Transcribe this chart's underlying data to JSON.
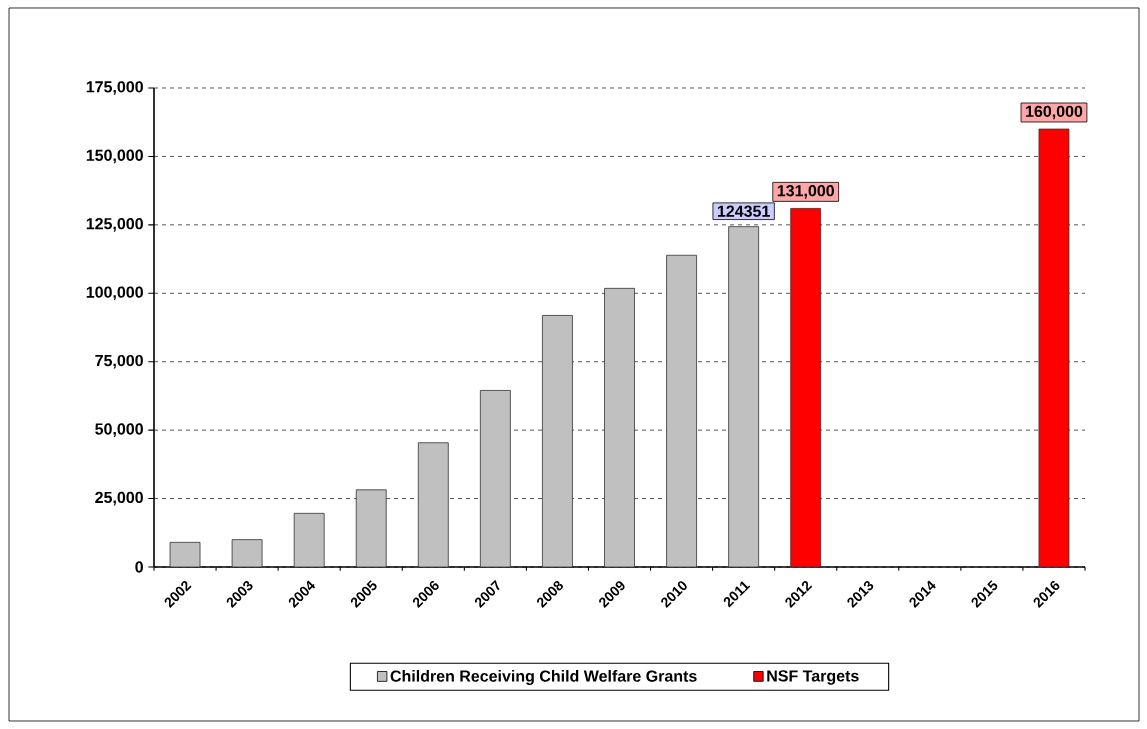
{
  "chart_data": {
    "type": "bar",
    "categories": [
      "2002",
      "2003",
      "2004",
      "2005",
      "2006",
      "2007",
      "2008",
      "2009",
      "2010",
      "2011",
      "2012",
      "2013",
      "2014",
      "2015",
      "2016"
    ],
    "series": [
      {
        "name": "Children Receiving  Child Welfare Grants",
        "color": "#c0c0c0",
        "values": [
          9000,
          10000,
          19600,
          28200,
          45400,
          64500,
          91900,
          101800,
          113900,
          124351,
          null,
          null,
          null,
          null,
          null
        ],
        "value_labels": [
          null,
          null,
          null,
          null,
          null,
          null,
          null,
          null,
          null,
          "124351",
          null,
          null,
          null,
          null,
          null
        ]
      },
      {
        "name": "NSF Targets",
        "color": "#ff0000",
        "values": [
          null,
          null,
          null,
          null,
          null,
          null,
          null,
          null,
          null,
          null,
          131000,
          null,
          null,
          null,
          160000
        ],
        "value_labels": [
          null,
          null,
          null,
          null,
          null,
          null,
          null,
          null,
          null,
          null,
          "131,000",
          null,
          null,
          null,
          "160,000"
        ]
      }
    ],
    "ylim": [
      0,
      175000
    ],
    "yticks": [
      0,
      {
        "value": 25000,
        "label": "25,000"
      },
      {
        "value": 50000,
        "label": "50,000"
      },
      {
        "value": 75000,
        "label": "75,000"
      },
      {
        "value": 100000,
        "label": "100,000"
      },
      {
        "value": 125000,
        "label": "125,000"
      },
      {
        "value": 150000,
        "label": "150,000"
      },
      {
        "value": 175000,
        "label": "175,000"
      }
    ],
    "grid": "y",
    "legend": "bottom"
  }
}
